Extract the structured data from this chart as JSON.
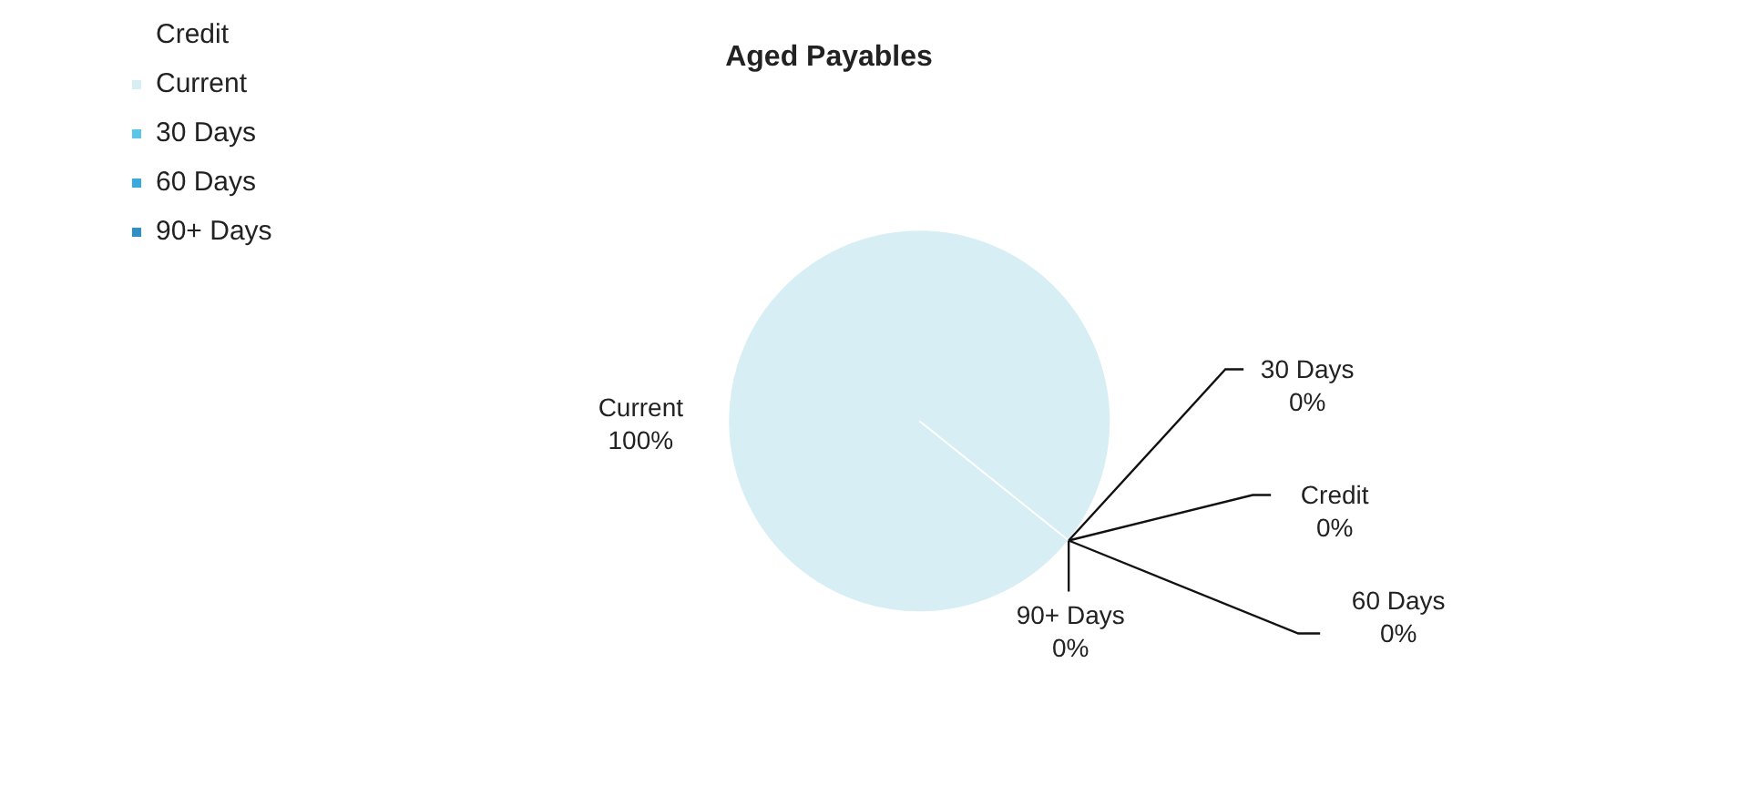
{
  "chart_data": {
    "type": "pie",
    "title": "Aged Payables",
    "categories": [
      "Credit",
      "Current",
      "30 Days",
      "60 Days",
      "90+ Days"
    ],
    "values": [
      0,
      100,
      0,
      0,
      0
    ],
    "colors": [
      "#ffffff",
      "#d8eef5",
      "#5cc6ea",
      "#3aa9de",
      "#2f8fc6"
    ],
    "value_labels": [
      "0%",
      "100%",
      "0%",
      "0%",
      "0%"
    ],
    "legend": "top left"
  }
}
